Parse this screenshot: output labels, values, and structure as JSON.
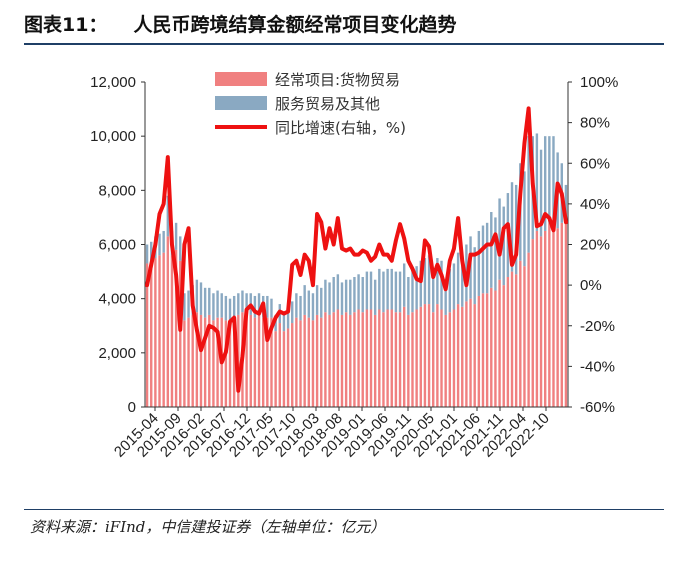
{
  "header": {
    "figure_label": "图表11：",
    "title": "人民币跨境结算金额经常项目变化趋势"
  },
  "footer": {
    "source": "资料来源：iFInd，中信建投证券（左轴单位：亿元）"
  },
  "chart_data": {
    "type": "bar",
    "stacked": true,
    "title": "人民币跨境结算金额经常项目变化趋势",
    "xlabel": "",
    "ylabel": "",
    "ylim": [
      0,
      12000
    ],
    "y2lim": [
      -60,
      100
    ],
    "y_ticks": [
      "0",
      "2,000",
      "4,000",
      "6,000",
      "8,000",
      "10,000",
      "12,000"
    ],
    "y2_ticks": [
      "-60%",
      "-40%",
      "-20%",
      "0%",
      "20%",
      "40%",
      "60%",
      "80%",
      "100%"
    ],
    "x_tick_labels": [
      "2015-04",
      "2015-09",
      "2016-02",
      "2016-07",
      "2016-12",
      "2017-05",
      "2017-10",
      "2018-03",
      "2018-08",
      "2019-01",
      "2019-06",
      "2019-11",
      "2020-05",
      "2021-01",
      "2021-06",
      "2021-11",
      "2022-04",
      "2022-10"
    ],
    "legend": [
      "经常项目:货物贸易",
      "服务贸易及其他",
      "同比增速(右轴，%)"
    ],
    "legend_position": "top-center",
    "grid": false,
    "colors": {
      "goods": "#f08080",
      "services": "#8aa9c2",
      "yoy": "#ee1111"
    },
    "series": [
      {
        "name": "经常项目:货物贸易",
        "type": "bar",
        "values": [
          5300,
          5400,
          5500,
          5600,
          5700,
          6300,
          5600,
          5800,
          5400,
          3200,
          3300,
          3400,
          3500,
          3400,
          3300,
          3400,
          3200,
          3300,
          3300,
          3200,
          3100,
          3200,
          3400,
          3500,
          3300,
          3400,
          3300,
          3400,
          3300,
          3300,
          3300,
          2800,
          3100,
          2800,
          2900,
          3100,
          3300,
          3200,
          3400,
          3300,
          3200,
          3400,
          3300,
          3500,
          3400,
          3500,
          3600,
          3400,
          3500,
          3400,
          3500,
          3600,
          3500,
          3600,
          3600,
          3400,
          3600,
          3500,
          3600,
          3600,
          3500,
          3500,
          3700,
          3400,
          3500,
          3600,
          3700,
          3800,
          3800,
          3500,
          3800,
          3600,
          3400,
          3500,
          3600,
          3800,
          3700,
          3900,
          4000,
          3800,
          4100,
          4200,
          4200,
          4400,
          4300,
          4700,
          4500,
          4800,
          5000,
          4900,
          5400,
          5200,
          5700,
          6200,
          6500,
          6300,
          6500,
          6800,
          6900,
          6600,
          6800,
          7000
        ],
        "note": "monthly values, 2015-04 to 2022-10 (approx.)"
      },
      {
        "name": "服务贸易及其他",
        "type": "bar",
        "values": [
          700,
          700,
          800,
          800,
          800,
          1500,
          900,
          1000,
          900,
          1000,
          1000,
          1100,
          1200,
          1200,
          1100,
          1000,
          1000,
          1000,
          900,
          900,
          900,
          900,
          800,
          800,
          900,
          800,
          800,
          800,
          800,
          800,
          700,
          600,
          700,
          700,
          800,
          800,
          900,
          900,
          1100,
          1000,
          1000,
          1100,
          1100,
          1200,
          1200,
          1300,
          1300,
          1200,
          1200,
          1300,
          1300,
          1300,
          1300,
          1400,
          1400,
          1300,
          1500,
          1500,
          1500,
          1500,
          1500,
          1500,
          1600,
          1400,
          1600,
          1600,
          1700,
          1700,
          1800,
          1400,
          1700,
          1800,
          1300,
          1600,
          1700,
          1900,
          2000,
          2100,
          2300,
          2100,
          2400,
          2500,
          2600,
          2800,
          2700,
          3000,
          2900,
          3100,
          3300,
          3300,
          3600,
          3500,
          4300,
          3800,
          3600,
          3200,
          3500,
          3200,
          3100,
          2800,
          2200,
          1200
        ]
      },
      {
        "name": "同比增速(右轴，%)",
        "type": "line",
        "axis": "right",
        "values": [
          0,
          10,
          20,
          35,
          40,
          63,
          20,
          5,
          -22,
          20,
          28,
          -10,
          -22,
          -32,
          -26,
          -20,
          -21,
          -23,
          -38,
          -33,
          -18,
          -16,
          -52,
          -35,
          -12,
          -10,
          -13,
          -14,
          -9,
          -27,
          -21,
          -16,
          -13,
          -14,
          -13,
          10,
          12,
          5,
          15,
          12,
          0,
          35,
          31,
          18,
          28,
          20,
          33,
          18,
          17,
          18,
          15,
          15,
          17,
          16,
          12,
          14,
          20,
          15,
          15,
          12,
          22,
          30,
          23,
          12,
          8,
          3,
          2,
          22,
          19,
          4,
          10,
          5,
          -2,
          12,
          18,
          33,
          12,
          0,
          15,
          15,
          16,
          18,
          20,
          20,
          25,
          15,
          28,
          30,
          10,
          15,
          45,
          70,
          87,
          50,
          29,
          30,
          35,
          33,
          27,
          50,
          45,
          31
        ]
      }
    ]
  }
}
